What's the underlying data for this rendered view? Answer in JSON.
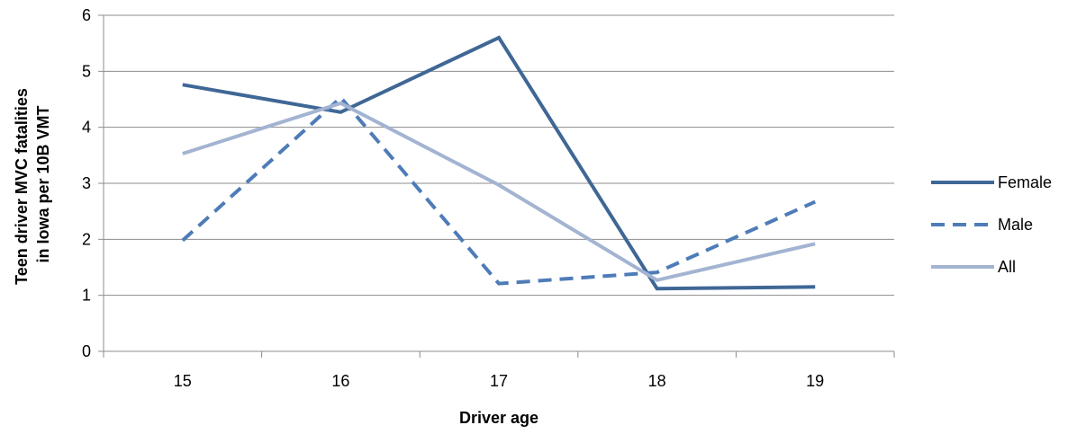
{
  "chart_data": {
    "type": "line",
    "title": "",
    "xlabel": "Driver age",
    "ylabel_lines": [
      "Teen driver MVC fatalities",
      "in Iowa per 10B VMT"
    ],
    "categories": [
      "15",
      "16",
      "17",
      "18",
      "19"
    ],
    "ylim": [
      0,
      6
    ],
    "yticks": [
      "0",
      "1",
      "2",
      "3",
      "4",
      "5",
      "6"
    ],
    "grid": true,
    "legend_position": "right",
    "series": [
      {
        "name": "Female",
        "values": [
          4.76,
          4.27,
          5.6,
          1.12,
          1.15
        ],
        "color": "#3F6796",
        "dash": "solid"
      },
      {
        "name": "Male",
        "values": [
          1.98,
          4.53,
          1.21,
          1.41,
          2.67
        ],
        "color": "#4E7CB8",
        "dash": "dashed"
      },
      {
        "name": "All",
        "values": [
          3.53,
          4.43,
          2.97,
          1.27,
          1.92
        ],
        "color": "#A3B4D2",
        "dash": "solid"
      }
    ]
  }
}
